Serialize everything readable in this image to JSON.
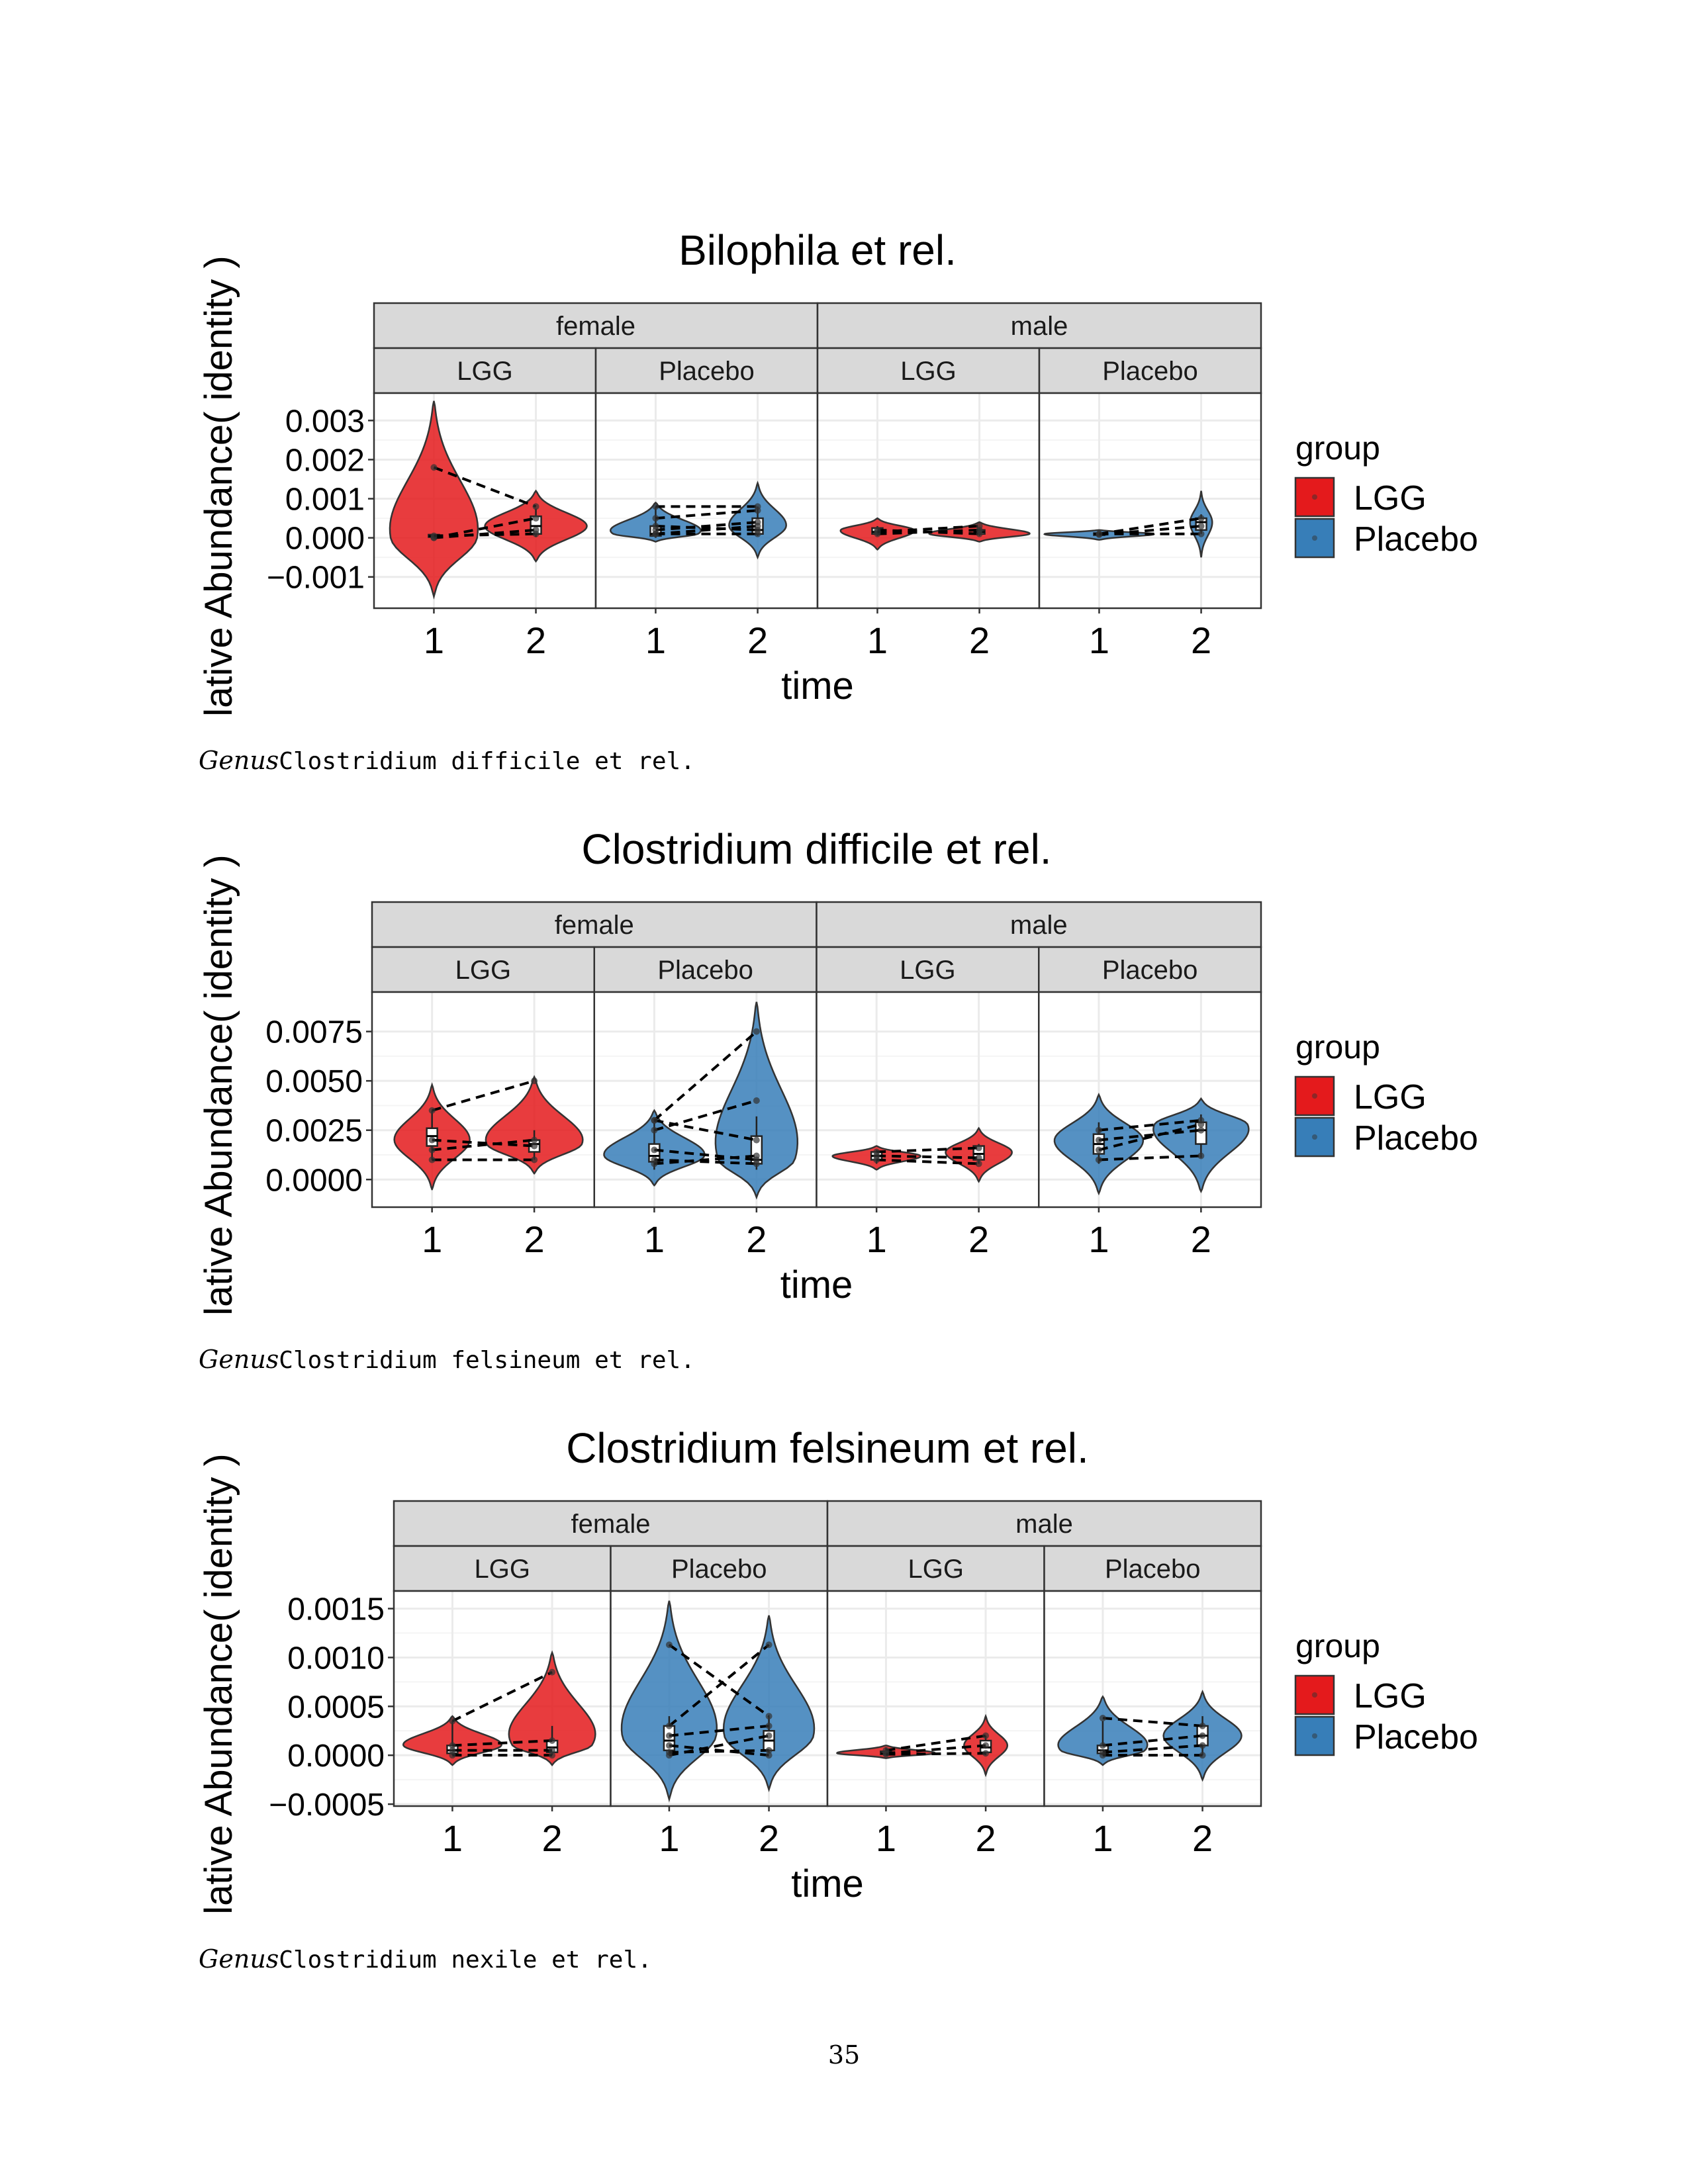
{
  "page_number": "35",
  "captions": [
    {
      "italic": "Genus",
      "mono": "Clostridium difficile et rel."
    },
    {
      "italic": "Genus",
      "mono": "Clostridium felsineum et rel."
    },
    {
      "italic": "Genus",
      "mono": "Clostridium nexile et rel."
    }
  ],
  "colors": {
    "LGG": "#E41A1C",
    "Placebo": "#377EB8",
    "strip_fill": "#D9D9D9",
    "grid": "#EBEBEB"
  },
  "chart_data": [
    {
      "type": "violin",
      "title": "Bilophila et rel.",
      "xlabel": "time",
      "ylabel": "lative Abundance( identity )",
      "yticks": [
        0.003,
        0.002,
        0.001,
        0.0,
        -0.001
      ],
      "ytick_labels": [
        "0.003",
        "0.002",
        "0.001",
        "0.000",
        "−0.001"
      ],
      "ylim": [
        -0.0018,
        0.0037
      ],
      "x_categories": [
        "1",
        "2"
      ],
      "legend": {
        "title": "group",
        "entries": [
          "LGG",
          "Placebo"
        ],
        "position": "right"
      },
      "sex_strips": [
        "female",
        "male"
      ],
      "group_strips": [
        "LGG",
        "Placebo",
        "LGG",
        "Placebo"
      ],
      "panels": [
        {
          "sex": "female",
          "group": "LGG",
          "violins": [
            {
              "time": "1",
              "min": -0.0015,
              "max": 0.0035,
              "width": 0.42,
              "mode": 0.0
            },
            {
              "time": "2",
              "min": -0.0006,
              "max": 0.0012,
              "width": 0.46,
              "mode": 0.0003
            }
          ],
          "boxes": [
            {
              "time": "1",
              "lo": 0.0,
              "q1": 2e-05,
              "med": 4e-05,
              "q3": 8e-05,
              "hi": 0.0001
            },
            {
              "time": "2",
              "lo": 2e-05,
              "q1": 0.0001,
              "med": 0.0003,
              "q3": 0.00055,
              "hi": 0.00075
            }
          ],
          "pairs": [
            [
              0.0018,
              0.0008
            ],
            [
              0.0,
              0.0005
            ],
            [
              0.0,
              0.0002
            ],
            [
              5e-05,
              0.0001
            ]
          ]
        },
        {
          "sex": "female",
          "group": "Placebo",
          "violins": [
            {
              "time": "1",
              "min": -0.0001,
              "max": 0.0009,
              "width": 0.46,
              "mode": 0.0001
            },
            {
              "time": "2",
              "min": -0.0005,
              "max": 0.0014,
              "width": 0.26,
              "mode": 0.0003
            }
          ],
          "boxes": [
            {
              "time": "1",
              "lo": 0.0,
              "q1": 5e-05,
              "med": 0.0001,
              "q3": 0.0003,
              "hi": 0.0008
            },
            {
              "time": "2",
              "lo": 5e-05,
              "q1": 0.0001,
              "med": 0.0002,
              "q3": 0.0005,
              "hi": 0.0008
            }
          ],
          "pairs": [
            [
              0.0008,
              0.0008
            ],
            [
              0.0005,
              0.0007
            ],
            [
              0.0003,
              0.0002
            ],
            [
              0.0001,
              0.0001
            ],
            [
              0.0002,
              0.0004
            ],
            [
              0.0001,
              0.0003
            ]
          ]
        },
        {
          "sex": "male",
          "group": "LGG",
          "violins": [
            {
              "time": "1",
              "min": -0.0003,
              "max": 0.0005,
              "width": 0.34,
              "mode": 0.0002
            },
            {
              "time": "2",
              "min": -0.0001,
              "max": 0.0004,
              "width": 0.46,
              "mode": 0.0001
            }
          ],
          "boxes": [
            {
              "time": "1",
              "lo": 5e-05,
              "q1": 0.0001,
              "med": 0.00015,
              "q3": 0.00025,
              "hi": 0.0003
            },
            {
              "time": "2",
              "lo": 5e-05,
              "q1": 0.0001,
              "med": 0.00015,
              "q3": 0.0002,
              "hi": 0.00025
            }
          ],
          "pairs": [
            [
              0.0002,
              0.0001
            ],
            [
              0.0001,
              0.0002
            ],
            [
              0.00015,
              0.0003
            ]
          ]
        },
        {
          "sex": "male",
          "group": "Placebo",
          "violins": [
            {
              "time": "1",
              "min": -5e-05,
              "max": 0.0002,
              "width": 0.5,
              "mode": 0.0001
            },
            {
              "time": "2",
              "min": -0.0005,
              "max": 0.0012,
              "width": 0.1,
              "mode": 0.0004
            }
          ],
          "boxes": [
            {
              "time": "1",
              "lo": 5e-05,
              "q1": 8e-05,
              "med": 0.0001,
              "q3": 0.00012,
              "hi": 0.00015
            },
            {
              "time": "2",
              "lo": 0.0001,
              "q1": 0.0002,
              "med": 0.0004,
              "q3": 0.0005,
              "hi": 0.0006
            }
          ],
          "pairs": [
            [
              0.0001,
              0.0005
            ],
            [
              8e-05,
              0.0003
            ],
            [
              0.0001,
              0.0001
            ]
          ]
        }
      ]
    },
    {
      "type": "violin",
      "title": "Clostridium difficile et rel.",
      "xlabel": "time",
      "ylabel": "lative Abundance( identity )",
      "yticks": [
        0.0075,
        0.005,
        0.0025,
        0.0
      ],
      "ytick_labels": [
        "0.0075",
        "0.0050",
        "0.0025",
        "0.0000"
      ],
      "ylim": [
        -0.0014,
        0.0095
      ],
      "x_categories": [
        "1",
        "2"
      ],
      "legend": {
        "title": "group",
        "entries": [
          "LGG",
          "Placebo"
        ],
        "position": "right"
      },
      "sex_strips": [
        "female",
        "male"
      ],
      "group_strips": [
        "LGG",
        "Placebo",
        "LGG",
        "Placebo"
      ],
      "panels": [
        {
          "sex": "female",
          "group": "LGG",
          "violins": [
            {
              "time": "1",
              "min": -0.0005,
              "max": 0.0048,
              "width": 0.34,
              "mode": 0.002
            },
            {
              "time": "2",
              "min": 0.0003,
              "max": 0.0052,
              "width": 0.46,
              "mode": 0.0018
            }
          ],
          "boxes": [
            {
              "time": "1",
              "lo": 0.001,
              "q1": 0.0017,
              "med": 0.0022,
              "q3": 0.0026,
              "hi": 0.0035
            },
            {
              "time": "2",
              "lo": 0.001,
              "q1": 0.0014,
              "med": 0.0018,
              "q3": 0.002,
              "hi": 0.0025
            }
          ],
          "pairs": [
            [
              0.0035,
              0.005
            ],
            [
              0.002,
              0.0017
            ],
            [
              0.0015,
              0.002
            ],
            [
              0.001,
              0.001
            ]
          ]
        },
        {
          "sex": "female",
          "group": "Placebo",
          "violins": [
            {
              "time": "1",
              "min": -0.0003,
              "max": 0.0035,
              "width": 0.46,
              "mode": 0.0012
            },
            {
              "time": "2",
              "min": -0.0009,
              "max": 0.009,
              "width": 0.42,
              "mode": 0.001
            }
          ],
          "boxes": [
            {
              "time": "1",
              "lo": 0.0005,
              "q1": 0.0009,
              "med": 0.0012,
              "q3": 0.0018,
              "hi": 0.0031
            },
            {
              "time": "2",
              "lo": 0.0005,
              "q1": 0.0008,
              "med": 0.001,
              "q3": 0.0022,
              "hi": 0.0032
            }
          ],
          "pairs": [
            [
              0.003,
              0.0075
            ],
            [
              0.0025,
              0.004
            ],
            [
              0.003,
              0.002
            ],
            [
              0.0015,
              0.001
            ],
            [
              0.001,
              0.0008
            ],
            [
              0.0008,
              0.0012
            ]
          ]
        },
        {
          "sex": "male",
          "group": "LGG",
          "violins": [
            {
              "time": "1",
              "min": 0.0005,
              "max": 0.0017,
              "width": 0.4,
              "mode": 0.0012
            },
            {
              "time": "2",
              "min": -0.0001,
              "max": 0.0026,
              "width": 0.3,
              "mode": 0.0014
            }
          ],
          "boxes": [
            {
              "time": "1",
              "lo": 0.0008,
              "q1": 0.001,
              "med": 0.0012,
              "q3": 0.0014,
              "hi": 0.0015
            },
            {
              "time": "2",
              "lo": 0.0008,
              "q1": 0.001,
              "med": 0.0013,
              "q3": 0.0017,
              "hi": 0.0018
            }
          ],
          "pairs": [
            [
              0.0014,
              0.0016
            ],
            [
              0.0012,
              0.0011
            ],
            [
              0.001,
              0.0008
            ]
          ]
        },
        {
          "sex": "male",
          "group": "Placebo",
          "violins": [
            {
              "time": "1",
              "min": -0.0007,
              "max": 0.0043,
              "width": 0.4,
              "mode": 0.002
            },
            {
              "time": "2",
              "min": -0.0006,
              "max": 0.0041,
              "width": 0.46,
              "mode": 0.0028
            }
          ],
          "boxes": [
            {
              "time": "1",
              "lo": 0.0008,
              "q1": 0.0013,
              "med": 0.0018,
              "q3": 0.0023,
              "hi": 0.0029
            },
            {
              "time": "2",
              "lo": 0.0011,
              "q1": 0.0018,
              "med": 0.0025,
              "q3": 0.0029,
              "hi": 0.0033
            }
          ],
          "pairs": [
            [
              0.0025,
              0.003
            ],
            [
              0.002,
              0.0025
            ],
            [
              0.001,
              0.0012
            ],
            [
              0.0015,
              0.0028
            ]
          ]
        }
      ]
    },
    {
      "type": "violin",
      "title": "Clostridium felsineum et rel.",
      "xlabel": "time",
      "ylabel": "lative Abundance( identity )",
      "yticks": [
        0.0015,
        0.001,
        0.0005,
        0.0,
        -0.0005
      ],
      "ytick_labels": [
        "0.0015",
        "0.0010",
        "0.0005",
        "0.0000",
        "−0.0005"
      ],
      "ylim": [
        -0.00052,
        0.00168
      ],
      "x_categories": [
        "1",
        "2"
      ],
      "legend": {
        "title": "group",
        "entries": [
          "LGG",
          "Placebo"
        ],
        "position": "right"
      },
      "sex_strips": [
        "female",
        "male"
      ],
      "group_strips": [
        "LGG",
        "Placebo",
        "LGG",
        "Placebo"
      ],
      "panels": [
        {
          "sex": "female",
          "group": "LGG",
          "violins": [
            {
              "time": "1",
              "min": -0.0001,
              "max": 0.0004,
              "width": 0.46,
              "mode": 0.0001
            },
            {
              "time": "2",
              "min": -0.0001,
              "max": 0.00105,
              "width": 0.46,
              "mode": 0.0001
            }
          ],
          "boxes": [
            {
              "time": "1",
              "lo": 0.0,
              "q1": 2e-05,
              "med": 5e-05,
              "q3": 0.0001,
              "hi": 0.00035
            },
            {
              "time": "2",
              "lo": 0.0,
              "q1": 3e-05,
              "med": 8e-05,
              "q3": 0.00015,
              "hi": 0.0003
            }
          ],
          "pairs": [
            [
              0.00035,
              0.00085
            ],
            [
              0.0001,
              0.00015
            ],
            [
              5e-05,
              5e-05
            ],
            [
              0.0,
              0.0
            ]
          ]
        },
        {
          "sex": "female",
          "group": "Placebo",
          "violins": [
            {
              "time": "1",
              "min": -0.00045,
              "max": 0.00158,
              "width": 0.46,
              "mode": 0.0002
            },
            {
              "time": "2",
              "min": -0.00035,
              "max": 0.00143,
              "width": 0.44,
              "mode": 0.0002
            }
          ],
          "boxes": [
            {
              "time": "1",
              "lo": 0.0,
              "q1": 5e-05,
              "med": 0.00015,
              "q3": 0.0003,
              "hi": 0.0004
            },
            {
              "time": "2",
              "lo": 2e-05,
              "q1": 5e-05,
              "med": 0.00015,
              "q3": 0.00025,
              "hi": 0.0004
            }
          ],
          "pairs": [
            [
              0.00113,
              0.0004
            ],
            [
              0.0003,
              0.00113
            ],
            [
              0.0002,
              0.0003
            ],
            [
              0.0,
              0.0002
            ],
            [
              0.0001,
              0.0
            ],
            [
              3e-05,
              5e-05
            ]
          ]
        },
        {
          "sex": "male",
          "group": "LGG",
          "violins": [
            {
              "time": "1",
              "min": -3e-05,
              "max": 0.0001,
              "width": 0.46,
              "mode": 2e-05
            },
            {
              "time": "2",
              "min": -0.0002,
              "max": 0.0004,
              "width": 0.2,
              "mode": 0.0001
            }
          ],
          "boxes": [
            {
              "time": "1",
              "lo": 0.0,
              "q1": 1e-05,
              "med": 2e-05,
              "q3": 4e-05,
              "hi": 8e-05
            },
            {
              "time": "2",
              "lo": 0.0,
              "q1": 3e-05,
              "med": 8e-05,
              "q3": 0.00015,
              "hi": 0.0002
            }
          ],
          "pairs": [
            [
              5e-05,
              0.0002
            ],
            [
              2e-05,
              0.0001
            ],
            [
              1e-05,
              2e-05
            ]
          ]
        },
        {
          "sex": "male",
          "group": "Placebo",
          "violins": [
            {
              "time": "1",
              "min": -0.0001,
              "max": 0.0006,
              "width": 0.46,
              "mode": 5e-05
            },
            {
              "time": "2",
              "min": -0.00025,
              "max": 0.00065,
              "width": 0.36,
              "mode": 0.0002
            }
          ],
          "boxes": [
            {
              "time": "1",
              "lo": 0.0,
              "q1": 2e-05,
              "med": 5e-05,
              "q3": 0.0001,
              "hi": 0.00035
            },
            {
              "time": "2",
              "lo": 0.0,
              "q1": 0.0001,
              "med": 0.0002,
              "q3": 0.0003,
              "hi": 0.0004
            }
          ],
          "pairs": [
            [
              0.00038,
              0.0003
            ],
            [
              0.0001,
              0.0002
            ],
            [
              3e-05,
              0.0001
            ],
            [
              0.0,
              0.0
            ]
          ]
        }
      ]
    }
  ]
}
